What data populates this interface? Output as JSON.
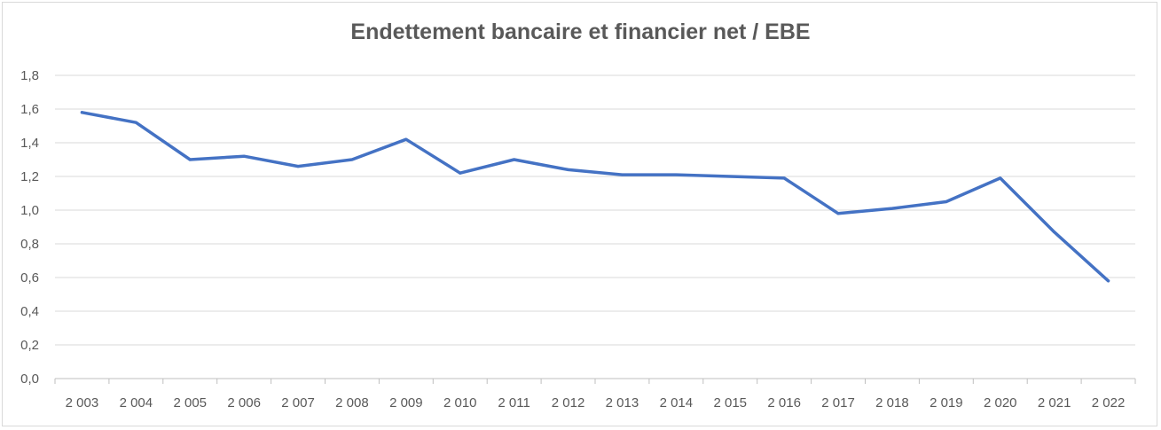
{
  "chart_data": {
    "type": "line",
    "title": "Endettement bancaire et financier net / EBE",
    "xlabel": "",
    "ylabel": "",
    "categories": [
      "2 003",
      "2 004",
      "2 005",
      "2 006",
      "2 007",
      "2 008",
      "2 009",
      "2 010",
      "2 011",
      "2 012",
      "2 013",
      "2 014",
      "2 015",
      "2 016",
      "2 017",
      "2 018",
      "2 019",
      "2 020",
      "2 021",
      "2 022"
    ],
    "series": [
      {
        "values": [
          1.58,
          1.52,
          1.3,
          1.32,
          1.26,
          1.3,
          1.42,
          1.22,
          1.3,
          1.24,
          1.21,
          1.21,
          1.2,
          1.19,
          0.98,
          1.01,
          1.05,
          1.19,
          0.87,
          0.58
        ]
      }
    ],
    "ylim": [
      0,
      1.8
    ],
    "yticks": [
      "0,0",
      "0,2",
      "0,4",
      "0,6",
      "0,8",
      "1,0",
      "1,2",
      "1,4",
      "1,6",
      "1,8"
    ],
    "grid": true,
    "line_color": "#4472c4"
  }
}
